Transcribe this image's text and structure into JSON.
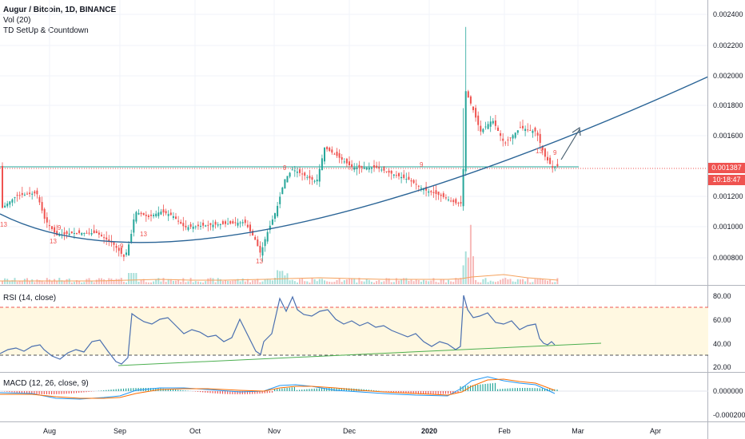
{
  "header": {
    "symbol": "Augur / Bitcoin, 1D, BINANCE",
    "indicator_vol": "Vol (20)",
    "indicator_td": "TD SetUp & Countdown"
  },
  "price_axis": {
    "labels": [
      "0.002400",
      "0.002200",
      "0.002000",
      "0.001800",
      "0.001600",
      "0.001200",
      "0.001000",
      "0.000800"
    ],
    "last_price": "0.001387",
    "countdown": "10:18:47",
    "last_color": "#ef5350",
    "countdown_color": "#ef5350"
  },
  "rsi": {
    "title": "RSI (14, close)",
    "labels": [
      "80.00",
      "60.00",
      "40.00",
      "20.00"
    ],
    "band_color": "#fff8e1",
    "line_color": "#4a6fb0"
  },
  "macd": {
    "title": "MACD (12, 26, close, 9)",
    "labels": [
      "0.000000",
      "-0.000200"
    ]
  },
  "time_axis": {
    "labels": [
      "Aug",
      "Sep",
      "Oct",
      "Nov",
      "Dec",
      "2020",
      "Feb",
      "Mar",
      "Apr"
    ]
  },
  "td_labels": {
    "nine": "9",
    "thirteen": "13"
  },
  "colors": {
    "up": "#26a69a",
    "down": "#ef5350",
    "curve": "#2a6496",
    "horizontal_line": "#26a69a"
  }
}
